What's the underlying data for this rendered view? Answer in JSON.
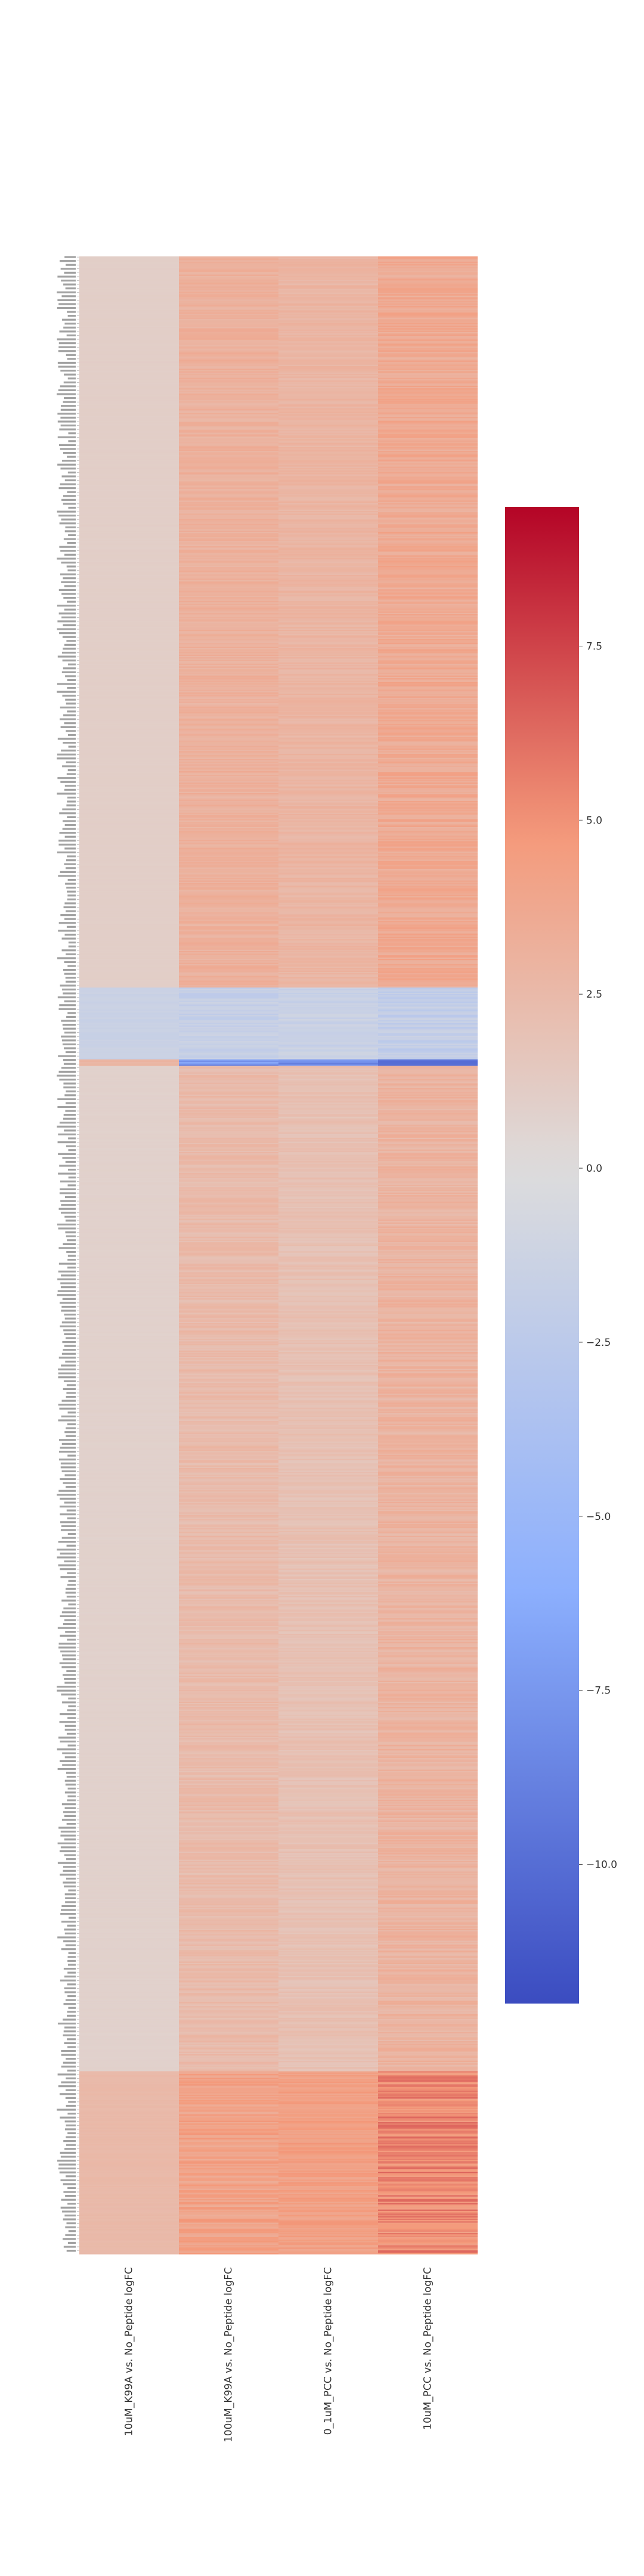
{
  "chart_data": {
    "type": "heatmap",
    "title": "",
    "xlabel": "",
    "ylabel": "",
    "columns": [
      "10uM_K99A vs. No_Peptide logFC",
      "100uM_K99A vs. No_Peptide logFC",
      "0_1uM_PCC vs. No_Peptide logFC",
      "10uM_PCC vs. No_Peptide logFC"
    ],
    "row_tick_labels_note": "dense, illegible gene labels",
    "clusters": [
      {
        "name": "",
        "rows": 560,
        "means": [
          1.0,
          3.1,
          2.8,
          3.6
        ],
        "spread": [
          0.05,
          0.5,
          0.4,
          0.7
        ]
      },
      {
        "name": "",
        "rows": 55,
        "means": [
          -1.5,
          -1.8,
          -1.6,
          -2.0
        ],
        "spread": [
          0.2,
          0.6,
          0.5,
          0.7
        ]
      },
      {
        "name": "",
        "rows": 5,
        "means": [
          2.8,
          -7.5,
          -9.0,
          -8.5
        ],
        "spread": [
          0.2,
          2.0,
          2.0,
          2.0
        ]
      },
      {
        "name": "",
        "rows": 770,
        "means": [
          0.8,
          2.4,
          2.0,
          2.9
        ],
        "spread": [
          0.05,
          0.5,
          0.4,
          0.6
        ]
      },
      {
        "name": "",
        "rows": 140,
        "means": [
          2.5,
          4.1,
          4.3,
          5.3
        ],
        "spread": [
          0.1,
          0.8,
          0.6,
          1.2
        ]
      }
    ],
    "value_range": [
      -12.0,
      9.5
    ],
    "colormap": "coolwarm",
    "colors": {
      "low": "#3b4cc0",
      "mid": "#dddcdc",
      "high": "#b40426"
    },
    "colorbar": {
      "ticks": [
        7.5,
        5.0,
        2.5,
        0.0,
        -2.5,
        -5.0,
        -7.5,
        -10.0
      ],
      "tick_labels": [
        "7.5",
        "5.0",
        "2.5",
        "0.0",
        "−2.5",
        "−5.0",
        "−7.5",
        "−10.0"
      ]
    }
  }
}
